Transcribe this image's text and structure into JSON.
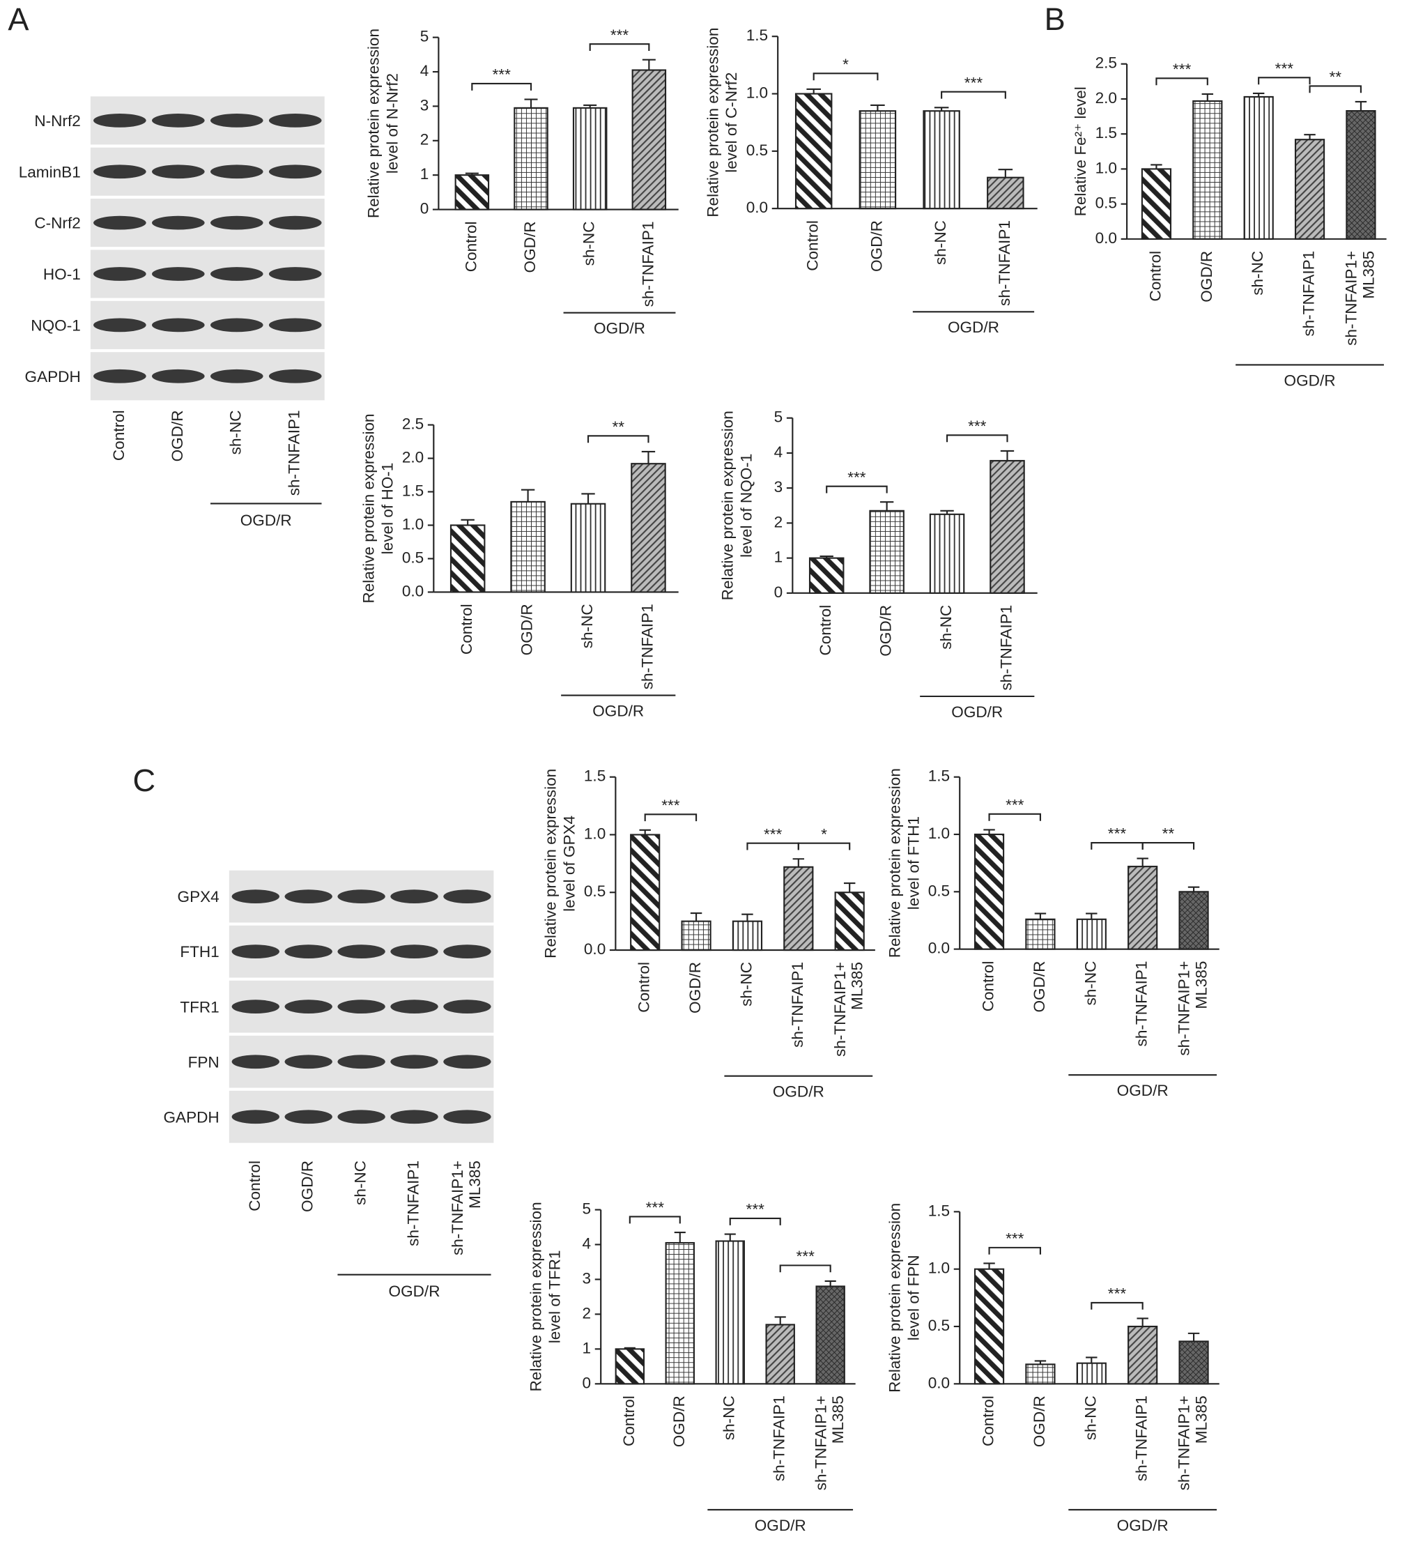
{
  "panel_labels": [
    "A",
    "B",
    "C"
  ],
  "blots": [
    {
      "bands": [
        "N-Nrf2",
        "LaminB1",
        "C-Nrf2",
        "HO-1",
        "NQO-1",
        "GAPDH"
      ],
      "lanes": [
        "Control",
        "OGD/R",
        "sh-NC",
        "sh-TNFAIP1"
      ],
      "group": {
        "label": "OGD/R",
        "from": 2,
        "to": 3
      }
    },
    {
      "bands": [
        "GPX4",
        "FTH1",
        "TFR1",
        "FPN",
        "GAPDH"
      ],
      "lanes": [
        "Control",
        "OGD/R",
        "sh-NC",
        "sh-TNFAIP1",
        "sh-TNFAIP1+\nML385"
      ],
      "group": {
        "label": "OGD/R",
        "from": 2,
        "to": 4
      }
    }
  ],
  "chart_data": [
    {
      "type": "bar",
      "ylabel": [
        "Relative protein expression",
        "level of N-Nrf2"
      ],
      "categories": [
        "Control",
        "OGD/R",
        "sh-NC",
        "sh-TNFAIP1"
      ],
      "values": [
        1.0,
        2.95,
        2.95,
        4.05
      ],
      "errors": [
        0.05,
        0.25,
        0.08,
        0.3
      ],
      "patterns": [
        "diag-back",
        "grid",
        "vertical",
        "diag-fwd"
      ],
      "ylim": [
        0,
        5
      ],
      "yticks": [
        0,
        1,
        2,
        3,
        4,
        5
      ],
      "annotations": [
        {
          "text": "***",
          "from": 0,
          "to": 1
        },
        {
          "text": "***",
          "from": 2,
          "to": 3
        }
      ],
      "group": {
        "label": "OGD/R",
        "from": 2,
        "to": 3
      }
    },
    {
      "type": "bar",
      "ylabel": [
        "Relative protein expression",
        "level of C-Nrf2"
      ],
      "categories": [
        "Control",
        "OGD/R",
        "sh-NC",
        "sh-TNFAIP1"
      ],
      "values": [
        1.0,
        0.85,
        0.85,
        0.27
      ],
      "errors": [
        0.04,
        0.05,
        0.03,
        0.07
      ],
      "patterns": [
        "diag-back",
        "grid",
        "vertical",
        "diag-fwd"
      ],
      "ylim": [
        0,
        1.5
      ],
      "yticks": [
        {
          "value": 0,
          "label": "0.0"
        },
        0.5,
        {
          "value": 1,
          "label": "1.0"
        },
        1.5
      ],
      "annotations": [
        {
          "text": "*",
          "from": 0,
          "to": 1
        },
        {
          "text": "***",
          "from": 2,
          "to": 3
        }
      ],
      "group": {
        "label": "OGD/R",
        "from": 2,
        "to": 3
      }
    },
    {
      "type": "bar",
      "ylabel": [
        "Relative Fe²⁺ level"
      ],
      "categories": [
        "Control",
        "OGD/R",
        "sh-NC",
        "sh-TNFAIP1",
        "sh-TNFAIP1+\nML385"
      ],
      "values": [
        1.0,
        1.97,
        2.03,
        1.42,
        1.83
      ],
      "errors": [
        0.06,
        0.1,
        0.05,
        0.07,
        0.13
      ],
      "patterns": [
        "diag-back",
        "grid",
        "vertical",
        "diag-fwd",
        "dense"
      ],
      "ylim": [
        0,
        2.5
      ],
      "yticks": [
        {
          "value": 0,
          "label": "0.0"
        },
        0.5,
        {
          "value": 1,
          "label": "1.0"
        },
        1.5,
        {
          "value": 2,
          "label": "2.0"
        },
        2.5
      ],
      "annotations": [
        {
          "text": "***",
          "from": 0,
          "to": 1
        },
        {
          "text": "***",
          "from": 2,
          "to": 3
        },
        {
          "text": "**",
          "from": 3,
          "to": 4
        }
      ],
      "group": {
        "label": "OGD/R",
        "from": 2,
        "to": 4
      }
    },
    {
      "type": "bar",
      "ylabel": [
        "Relative protein expression",
        "level of HO-1"
      ],
      "categories": [
        "Control",
        "OGD/R",
        "sh-NC",
        "sh-TNFAIP1"
      ],
      "values": [
        1.0,
        1.35,
        1.32,
        1.92
      ],
      "errors": [
        0.08,
        0.18,
        0.15,
        0.18
      ],
      "patterns": [
        "diag-back",
        "grid",
        "vertical",
        "diag-fwd"
      ],
      "ylim": [
        0,
        2.5
      ],
      "yticks": [
        {
          "value": 0,
          "label": "0.0"
        },
        0.5,
        {
          "value": 1,
          "label": "1.0"
        },
        1.5,
        {
          "value": 2,
          "label": "2.0"
        },
        2.5
      ],
      "annotations": [
        {
          "text": "**",
          "from": 2,
          "to": 3
        }
      ],
      "group": {
        "label": "OGD/R",
        "from": 2,
        "to": 3
      }
    },
    {
      "type": "bar",
      "ylabel": [
        "Relative protein expression",
        "level of NQO-1"
      ],
      "categories": [
        "Control",
        "OGD/R",
        "sh-NC",
        "sh-TNFAIP1"
      ],
      "values": [
        1.0,
        2.35,
        2.25,
        3.78
      ],
      "errors": [
        0.05,
        0.25,
        0.1,
        0.28
      ],
      "patterns": [
        "diag-back",
        "grid",
        "vertical",
        "diag-fwd"
      ],
      "ylim": [
        0,
        5
      ],
      "yticks": [
        0,
        1,
        2,
        3,
        4,
        5
      ],
      "annotations": [
        {
          "text": "***",
          "from": 0,
          "to": 1
        },
        {
          "text": "***",
          "from": 2,
          "to": 3
        }
      ],
      "group": {
        "label": "OGD/R",
        "from": 2,
        "to": 3
      }
    },
    {
      "type": "bar",
      "ylabel": [
        "Relative protein expression",
        "level of GPX4"
      ],
      "categories": [
        "Control",
        "OGD/R",
        "sh-NC",
        "sh-TNFAIP1",
        "sh-TNFAIP1+\nML385"
      ],
      "values": [
        1.0,
        0.25,
        0.25,
        0.72,
        0.5
      ],
      "errors": [
        0.04,
        0.07,
        0.06,
        0.07,
        0.08
      ],
      "patterns": [
        "diag-back",
        "grid",
        "vertical",
        "diag-fwd",
        "diag-back"
      ],
      "ylim": [
        0,
        1.5
      ],
      "yticks": [
        {
          "value": 0,
          "label": "0.0"
        },
        0.5,
        {
          "value": 1,
          "label": "1.0"
        },
        1.5
      ],
      "annotations": [
        {
          "text": "***",
          "from": 0,
          "to": 1
        },
        {
          "text": "***",
          "from": 2,
          "to": 3
        },
        {
          "text": "*",
          "from": 3,
          "to": 4
        }
      ],
      "group": {
        "label": "OGD/R",
        "from": 2,
        "to": 4
      }
    },
    {
      "type": "bar",
      "ylabel": [
        "Relative protein expression",
        "level of FTH1"
      ],
      "categories": [
        "Control",
        "OGD/R",
        "sh-NC",
        "sh-TNFAIP1",
        "sh-TNFAIP1+\nML385"
      ],
      "values": [
        1.0,
        0.26,
        0.26,
        0.72,
        0.5
      ],
      "errors": [
        0.04,
        0.05,
        0.05,
        0.07,
        0.04
      ],
      "patterns": [
        "diag-back",
        "grid",
        "vertical",
        "diag-fwd",
        "dense"
      ],
      "ylim": [
        0,
        1.5
      ],
      "yticks": [
        {
          "value": 0,
          "label": "0.0"
        },
        0.5,
        {
          "value": 1,
          "label": "1.0"
        },
        1.5
      ],
      "annotations": [
        {
          "text": "***",
          "from": 0,
          "to": 1
        },
        {
          "text": "***",
          "from": 2,
          "to": 3
        },
        {
          "text": "**",
          "from": 3,
          "to": 4
        }
      ],
      "group": {
        "label": "OGD/R",
        "from": 2,
        "to": 4
      }
    },
    {
      "type": "bar",
      "ylabel": [
        "Relative protein expression",
        "level of TFR1"
      ],
      "categories": [
        "Control",
        "OGD/R",
        "sh-NC",
        "sh-TNFAIP1",
        "sh-TNFAIP1+\nML385"
      ],
      "values": [
        1.0,
        4.05,
        4.1,
        1.7,
        2.8
      ],
      "errors": [
        0.03,
        0.3,
        0.2,
        0.22,
        0.15
      ],
      "patterns": [
        "diag-back",
        "grid",
        "vertical",
        "diag-fwd",
        "dense"
      ],
      "ylim": [
        0,
        5
      ],
      "yticks": [
        0,
        1,
        2,
        3,
        4,
        5
      ],
      "annotations": [
        {
          "text": "***",
          "from": 0,
          "to": 1
        },
        {
          "text": "***",
          "from": 2,
          "to": 3
        },
        {
          "text": "***",
          "from": 3,
          "to": 4
        }
      ],
      "group": {
        "label": "OGD/R",
        "from": 2,
        "to": 4
      }
    },
    {
      "type": "bar",
      "ylabel": [
        "Relative protein expression",
        "level of FPN"
      ],
      "categories": [
        "Control",
        "OGD/R",
        "sh-NC",
        "sh-TNFAIP1",
        "sh-TNFAIP1+\nML385"
      ],
      "values": [
        1.0,
        0.17,
        0.18,
        0.5,
        0.37
      ],
      "errors": [
        0.05,
        0.03,
        0.05,
        0.07,
        0.07
      ],
      "patterns": [
        "diag-back",
        "grid",
        "vertical",
        "diag-fwd",
        "dense"
      ],
      "ylim": [
        0,
        1.5
      ],
      "yticks": [
        {
          "value": 0,
          "label": "0.0"
        },
        0.5,
        {
          "value": 1,
          "label": "1.0"
        },
        1.5
      ],
      "annotations": [
        {
          "text": "***",
          "from": 0,
          "to": 1
        },
        {
          "text": "***",
          "from": 2,
          "to": 3
        }
      ],
      "group": {
        "label": "OGD/R",
        "from": 2,
        "to": 4
      }
    }
  ]
}
